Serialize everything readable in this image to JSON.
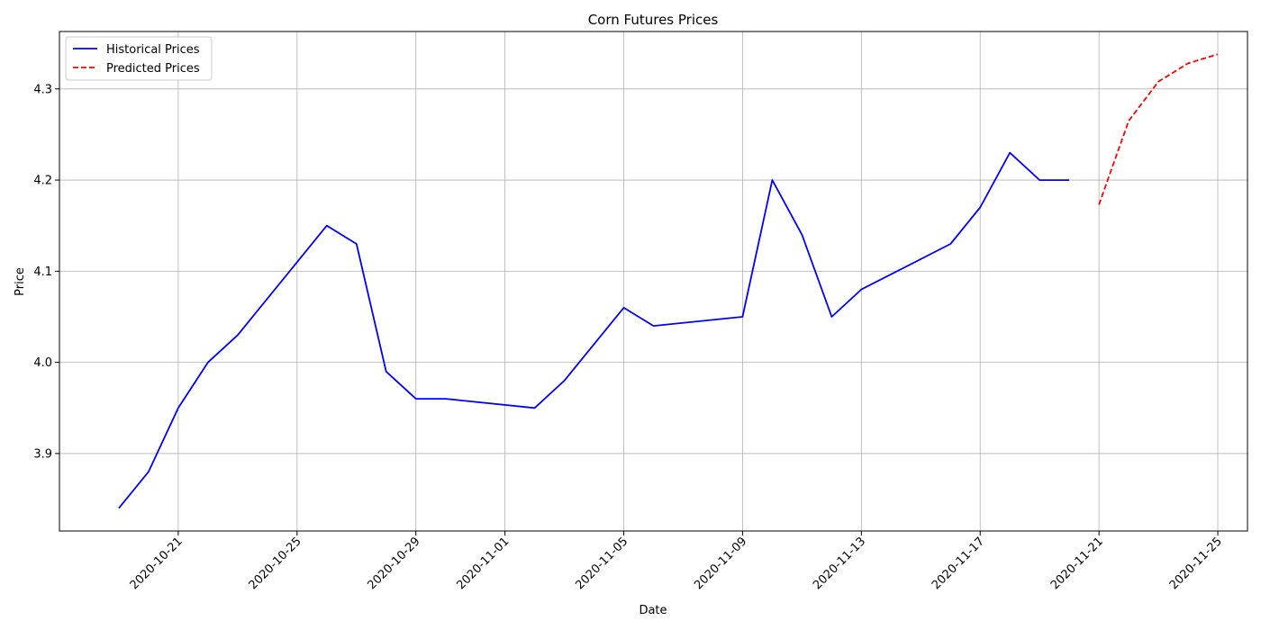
{
  "chart_data": {
    "type": "line",
    "title": "Corn Futures Prices",
    "xlabel": "Date",
    "ylabel": "Price",
    "grid": true,
    "legend_position": "top-left",
    "y_ticks": [
      "3.9",
      "4.0",
      "4.1",
      "4.2",
      "4.3"
    ],
    "ylim": [
      3.815,
      4.363
    ],
    "xlim": [
      "2020-10-17",
      "2020-11-26"
    ],
    "x_ticks": [
      "2020-10-21",
      "2020-10-25",
      "2020-10-29",
      "2020-11-01",
      "2020-11-05",
      "2020-11-09",
      "2020-11-13",
      "2020-11-17",
      "2020-11-21",
      "2020-11-25"
    ],
    "series": [
      {
        "name": "Historical Prices",
        "color": "#0000ff",
        "style": "solid",
        "points": [
          [
            "2020-10-19",
            3.84
          ],
          [
            "2020-10-20",
            3.88
          ],
          [
            "2020-10-21",
            3.95
          ],
          [
            "2020-10-22",
            4.0
          ],
          [
            "2020-10-23",
            4.03
          ],
          [
            "2020-10-26",
            4.15
          ],
          [
            "2020-10-27",
            4.13
          ],
          [
            "2020-10-28",
            3.99
          ],
          [
            "2020-10-29",
            3.96
          ],
          [
            "2020-10-30",
            3.96
          ],
          [
            "2020-11-02",
            3.95
          ],
          [
            "2020-11-03",
            3.98
          ],
          [
            "2020-11-05",
            4.06
          ],
          [
            "2020-11-06",
            4.04
          ],
          [
            "2020-11-09",
            4.05
          ],
          [
            "2020-11-10",
            4.2
          ],
          [
            "2020-11-11",
            4.14
          ],
          [
            "2020-11-12",
            4.05
          ],
          [
            "2020-11-13",
            4.08
          ],
          [
            "2020-11-16",
            4.13
          ],
          [
            "2020-11-17",
            4.17
          ],
          [
            "2020-11-18",
            4.23
          ],
          [
            "2020-11-19",
            4.2
          ],
          [
            "2020-11-20",
            4.2
          ]
        ]
      },
      {
        "name": "Predicted Prices",
        "color": "#ff0000",
        "style": "dashed",
        "points": [
          [
            "2020-11-21",
            4.173
          ],
          [
            "2020-11-22",
            4.265
          ],
          [
            "2020-11-23",
            4.308
          ],
          [
            "2020-11-24",
            4.328
          ],
          [
            "2020-11-25",
            4.338
          ]
        ]
      }
    ]
  }
}
